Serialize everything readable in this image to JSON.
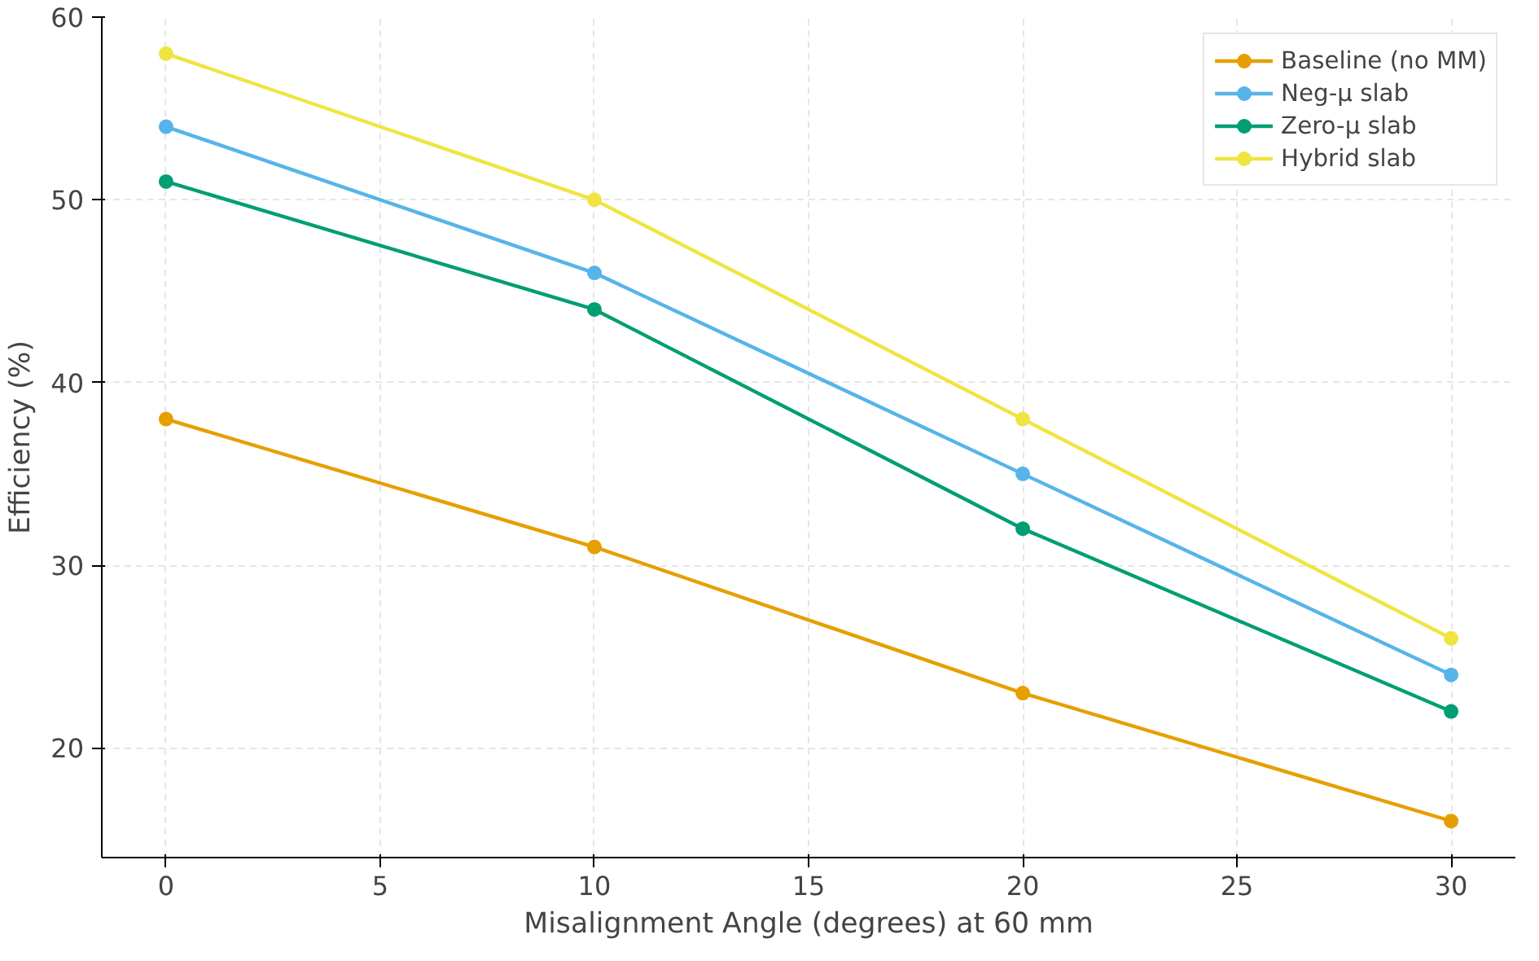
{
  "chart_data": {
    "type": "line",
    "xlabel": "Misalignment Angle (degrees) at 60 mm",
    "ylabel": "Efficiency (%)",
    "x": [
      0,
      10,
      20,
      30
    ],
    "series": [
      {
        "name": "Baseline (no MM)",
        "color": "#e69f00",
        "values": [
          38,
          31,
          23,
          16
        ]
      },
      {
        "name": "Neg-μ slab",
        "color": "#56b4e9",
        "values": [
          54,
          46,
          35,
          24
        ]
      },
      {
        "name": "Zero-μ slab",
        "color": "#009e73",
        "values": [
          51,
          44,
          32,
          22
        ]
      },
      {
        "name": "Hybrid slab",
        "color": "#f0e442",
        "values": [
          58,
          50,
          38,
          26
        ]
      }
    ],
    "xlim": [
      -1.5,
      31.5
    ],
    "ylim": [
      14,
      60
    ],
    "xticks": [
      0,
      5,
      10,
      15,
      20,
      25,
      30
    ],
    "yticks": [
      20,
      30,
      40,
      50,
      60
    ],
    "grid": true,
    "legend": "top right",
    "marker": "circle",
    "line_style": "solid"
  }
}
